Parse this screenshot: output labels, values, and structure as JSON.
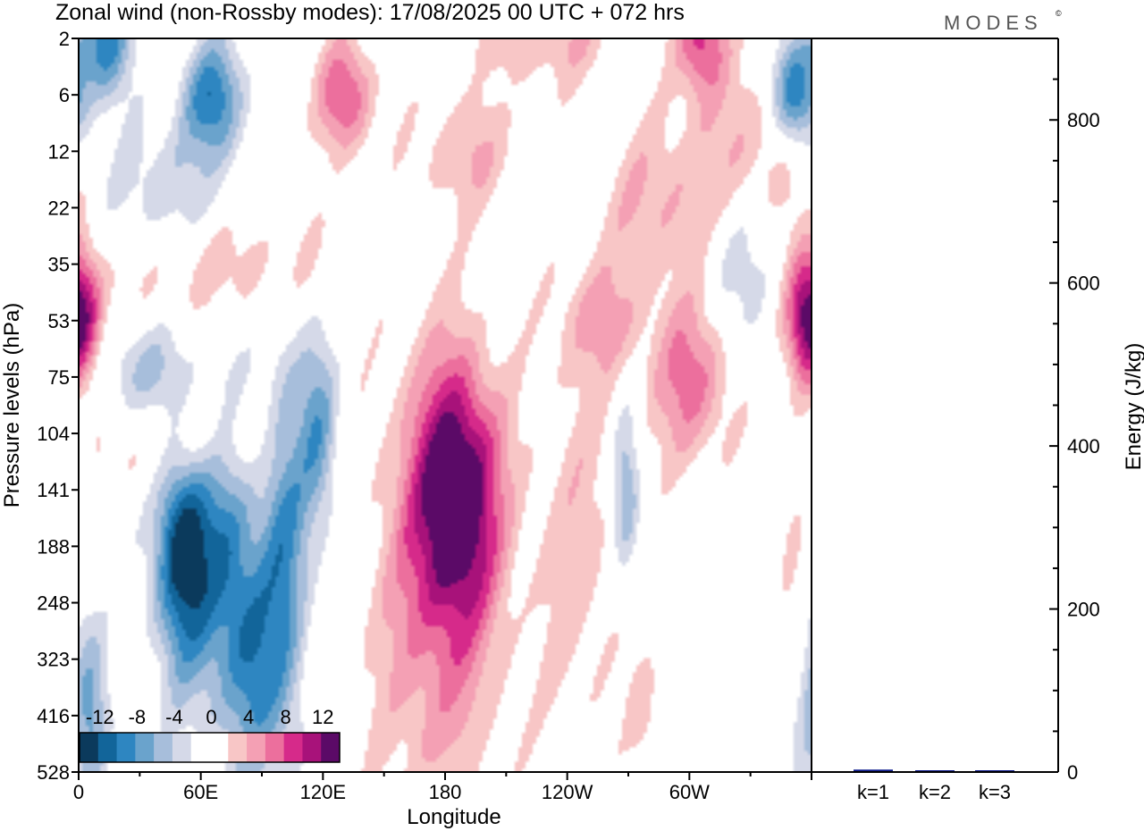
{
  "title": "Zonal wind (non-Rossby modes):  17/08/2025  00 UTC  + 072 hrs",
  "logo": "MODES",
  "logo_mark": "©",
  "colors": {
    "axis": "#000000",
    "energy_bar": "#0d1a8c",
    "palette": [
      "#0b3a5c",
      "#12659a",
      "#2e86c1",
      "#6aa3cc",
      "#a7bedb",
      "#d5d9e8",
      "#ffffff",
      "#ffffff",
      "#f8c6c6",
      "#f4a0b4",
      "#ec6f9d",
      "#d62a8a",
      "#a8127a",
      "#5b0a67"
    ]
  },
  "chart_data": [
    {
      "type": "heatmap",
      "title": "Zonal wind (non-Rossby modes)",
      "xlabel": "Longitude",
      "ylabel": "Pressure levels (hPa)",
      "x_ticks": [
        "0",
        "60E",
        "120E",
        "180",
        "120W",
        "60W"
      ],
      "x_tick_degrees": [
        0,
        60,
        120,
        180,
        240,
        300
      ],
      "x_range_degrees": [
        0,
        360
      ],
      "y_ticks": [
        "2",
        "6",
        "12",
        "22",
        "35",
        "53",
        "75",
        "104",
        "141",
        "188",
        "248",
        "323",
        "416",
        "528"
      ],
      "colorbar": {
        "labels": [
          "-12",
          "-8",
          "-4",
          "0",
          "4",
          "8",
          "12"
        ],
        "levels": [
          -14,
          -12,
          -10,
          -8,
          -6,
          -4,
          -2,
          0,
          2,
          4,
          6,
          8,
          10,
          12,
          14
        ],
        "placement": "bottom-left"
      },
      "features": [
        {
          "lon": 50,
          "level": "188",
          "value": -14,
          "rx": 14,
          "ry": 2.2
        },
        {
          "lon": 72,
          "level": "188",
          "value": -8,
          "rx": 15,
          "ry": 3.5
        },
        {
          "lon": 100,
          "level": "188",
          "value": -8,
          "rx": 12,
          "ry": 4
        },
        {
          "lon": 117,
          "level": "104",
          "value": -7,
          "rx": 10,
          "ry": 1.8
        },
        {
          "lon": 85,
          "level": "323",
          "value": -6,
          "rx": 12,
          "ry": 2
        },
        {
          "lon": 185,
          "level": "141",
          "value": 13,
          "rx": 20,
          "ry": 2.2
        },
        {
          "lon": 175,
          "level": "248",
          "value": 6,
          "rx": 32,
          "ry": 4
        },
        {
          "lon": 245,
          "level": "188",
          "value": 3,
          "rx": 22,
          "ry": 4
        },
        {
          "lon": 300,
          "level": "75",
          "value": 7,
          "rx": 20,
          "ry": 1.5
        },
        {
          "lon": 355,
          "level": "53",
          "value": 9,
          "rx": 10,
          "ry": 1.2
        },
        {
          "lon": 2,
          "level": "53",
          "value": 8,
          "rx": 10,
          "ry": 1.2
        },
        {
          "lon": 55,
          "level": "104",
          "value": 6,
          "rx": 40,
          "ry": 1.2
        },
        {
          "lon": 60,
          "level": "35",
          "value": 5,
          "rx": 60,
          "ry": 1.2
        },
        {
          "lon": 30,
          "level": "75",
          "value": -6,
          "rx": 25,
          "ry": 1
        },
        {
          "lon": 12,
          "level": "2",
          "value": -10,
          "rx": 12,
          "ry": 1
        },
        {
          "lon": 65,
          "level": "6",
          "value": -9,
          "rx": 15,
          "ry": 1
        },
        {
          "lon": 352,
          "level": "6",
          "value": -11,
          "rx": 12,
          "ry": 1
        },
        {
          "lon": 305,
          "level": "2",
          "value": 9,
          "rx": 12,
          "ry": 1
        },
        {
          "lon": 130,
          "level": "6",
          "value": 8,
          "rx": 14,
          "ry": 1
        },
        {
          "lon": 190,
          "level": "12",
          "value": 4,
          "rx": 25,
          "ry": 1
        },
        {
          "lon": 40,
          "level": "22",
          "value": -5,
          "rx": 35,
          "ry": 1.5
        },
        {
          "lon": 325,
          "level": "35",
          "value": -4,
          "rx": 25,
          "ry": 1.5
        },
        {
          "lon": 255,
          "level": "53",
          "value": 4,
          "rx": 20,
          "ry": 1
        },
        {
          "lon": 335,
          "level": "12",
          "value": 4,
          "rx": 35,
          "ry": 1.5
        },
        {
          "lon": 285,
          "level": "22",
          "value": 4,
          "rx": 30,
          "ry": 1.5
        },
        {
          "lon": 230,
          "level": "2",
          "value": 4,
          "rx": 35,
          "ry": 0.8
        },
        {
          "lon": 350,
          "level": "188",
          "value": 3,
          "rx": 8,
          "ry": 2
        },
        {
          "lon": 357,
          "level": "323",
          "value": -3,
          "rx": 10,
          "ry": 3
        },
        {
          "lon": 268,
          "level": "141",
          "value": -6,
          "rx": 7,
          "ry": 1.5
        },
        {
          "lon": 6,
          "level": "416",
          "value": -5,
          "rx": 8,
          "ry": 1.5
        },
        {
          "lon": 277,
          "level": "416",
          "value": 3,
          "rx": 8,
          "ry": 1.2
        }
      ]
    },
    {
      "type": "bar",
      "ylabel": "Energy (J/kg)",
      "categories": [
        "k=1",
        "k=2",
        "k=3"
      ],
      "values": [
        3,
        1.5,
        1
      ],
      "y_ticks": [
        "0",
        "200",
        "400",
        "600",
        "800"
      ],
      "ylim": [
        0,
        900
      ]
    }
  ]
}
